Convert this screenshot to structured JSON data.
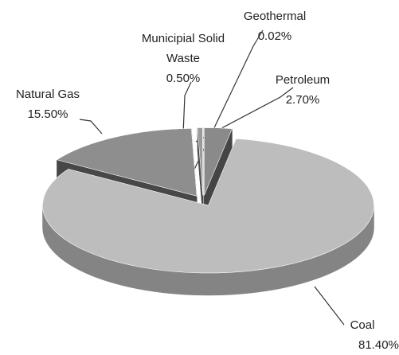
{
  "chart_data": {
    "type": "pie3d",
    "categories": [
      "Petroleum",
      "Coal",
      "Natural Gas",
      "Municipial Solid Waste",
      "Geothermal"
    ],
    "values": [
      2.7,
      81.4,
      15.5,
      0.5,
      0.02
    ],
    "value_labels": [
      "2.70%",
      "81.40%",
      "15.50%",
      "0.50%",
      "0.02%"
    ],
    "colors": [
      "#8a8a8a",
      "#bdbdbd",
      "#8e8e8e",
      "#9a9a9a",
      "#7a7a7a"
    ]
  }
}
